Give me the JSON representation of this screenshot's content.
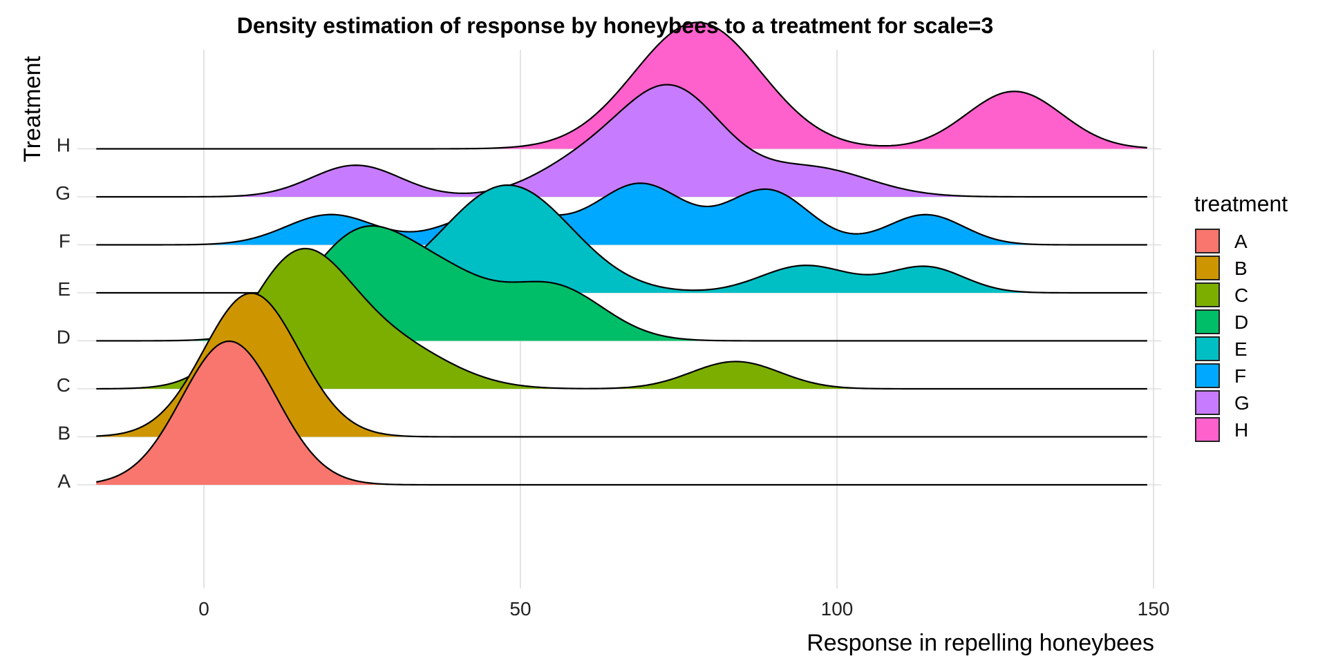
{
  "chart_data": {
    "type": "ridgeline",
    "title": "Density estimation of response by honeybees to a treatment for scale=3",
    "xlabel": "Response in repelling honeybees",
    "ylabel": "Treatment",
    "xlim": [
      -17,
      149
    ],
    "x_ticks": [
      0,
      50,
      100,
      150
    ],
    "grid": true,
    "legend": {
      "title": "treatment",
      "placement": "right",
      "items": [
        {
          "label": "A",
          "color": "#F8766D"
        },
        {
          "label": "B",
          "color": "#CD9600"
        },
        {
          "label": "C",
          "color": "#7CAE00"
        },
        {
          "label": "D",
          "color": "#00BE67"
        },
        {
          "label": "E",
          "color": "#00BFC4"
        },
        {
          "label": "F",
          "color": "#00A9FF"
        },
        {
          "label": "G",
          "color": "#C77CFF"
        },
        {
          "label": "H",
          "color": "#FF61CC"
        }
      ]
    },
    "series": [
      {
        "name": "A",
        "color": "#F8766D",
        "components": [
          {
            "mu": 4,
            "sd": 7.5,
            "w": 1.0
          }
        ]
      },
      {
        "name": "B",
        "color": "#CD9600",
        "components": [
          {
            "mu": 7.5,
            "sd": 7.5,
            "w": 1.0
          }
        ]
      },
      {
        "name": "C",
        "color": "#7CAE00",
        "components": [
          {
            "mu": 15,
            "sd": 8,
            "w": 0.9
          },
          {
            "mu": 30,
            "sd": 9,
            "w": 0.28
          },
          {
            "mu": 84,
            "sd": 7,
            "w": 0.19
          }
        ]
      },
      {
        "name": "D",
        "color": "#00BE67",
        "components": [
          {
            "mu": 25,
            "sd": 8.5,
            "w": 0.75
          },
          {
            "mu": 39,
            "sd": 7,
            "w": 0.3
          },
          {
            "mu": 55,
            "sd": 8,
            "w": 0.38
          }
        ]
      },
      {
        "name": "E",
        "color": "#00BFC4",
        "components": [
          {
            "mu": 48,
            "sd": 10,
            "w": 0.75
          },
          {
            "mu": 95,
            "sd": 7,
            "w": 0.19
          },
          {
            "mu": 114,
            "sd": 6,
            "w": 0.18
          }
        ]
      },
      {
        "name": "F",
        "color": "#00A9FF",
        "components": [
          {
            "mu": 20,
            "sd": 7,
            "w": 0.21
          },
          {
            "mu": 47,
            "sd": 8,
            "w": 0.25
          },
          {
            "mu": 69,
            "sd": 7,
            "w": 0.42
          },
          {
            "mu": 89,
            "sd": 6.5,
            "w": 0.38
          },
          {
            "mu": 114,
            "sd": 6,
            "w": 0.21
          }
        ]
      },
      {
        "name": "G",
        "color": "#C77CFF",
        "components": [
          {
            "mu": 24,
            "sd": 7,
            "w": 0.22
          },
          {
            "mu": 60,
            "sd": 8,
            "w": 0.22
          },
          {
            "mu": 74,
            "sd": 8,
            "w": 0.72
          },
          {
            "mu": 96,
            "sd": 9,
            "w": 0.2
          }
        ]
      },
      {
        "name": "H",
        "color": "#FF61CC",
        "components": [
          {
            "mu": 78,
            "sd": 10,
            "w": 0.88
          },
          {
            "mu": 128,
            "sd": 7.5,
            "w": 0.4
          }
        ]
      }
    ]
  }
}
